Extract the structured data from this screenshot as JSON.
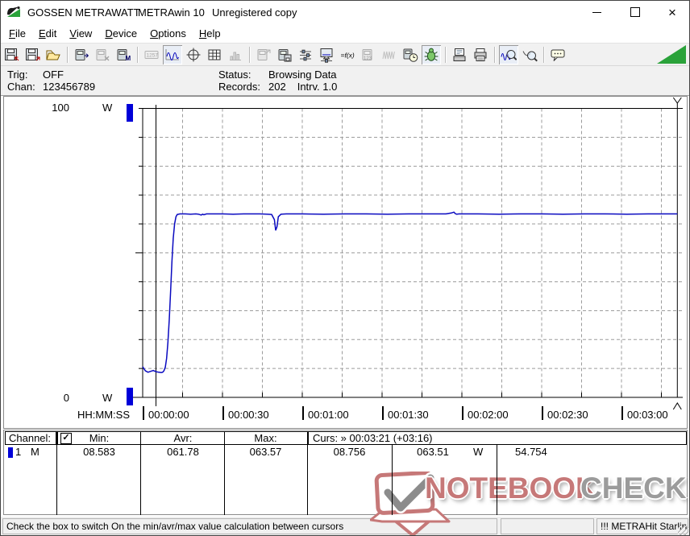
{
  "titlebar": {
    "brand": "GOSSEN METRAWATT",
    "app": "METRAwin 10",
    "note": "Unregistered copy"
  },
  "menubar": {
    "items": [
      "File",
      "Edit",
      "View",
      "Device",
      "Options",
      "Help"
    ]
  },
  "toolbar": {
    "corner_color": "#2aa23a",
    "buttons": [
      {
        "name": "save-data",
        "icon": "floppy-in",
        "state": "normal"
      },
      {
        "name": "save-data-as",
        "icon": "floppy-out",
        "state": "normal"
      },
      {
        "name": "open-file",
        "icon": "folder-open",
        "state": "normal"
      },
      {
        "name": "sep"
      },
      {
        "name": "read-from-device",
        "icon": "device-read",
        "state": "normal"
      },
      {
        "name": "send-to-device",
        "icon": "device-x",
        "state": "disabled"
      },
      {
        "name": "read-device-memory",
        "icon": "device-m",
        "state": "normal"
      },
      {
        "name": "sep"
      },
      {
        "name": "numeric-display-view",
        "icon": "lcd",
        "state": "disabled"
      },
      {
        "name": "chart-view",
        "icon": "waveform",
        "state": "pressed"
      },
      {
        "name": "cursor-tool",
        "icon": "crosshair",
        "state": "normal"
      },
      {
        "name": "table-view",
        "icon": "table",
        "state": "normal"
      },
      {
        "name": "histogram-view",
        "icon": "histogram",
        "state": "disabled"
      },
      {
        "name": "sep"
      },
      {
        "name": "export-data",
        "icon": "device-export",
        "state": "disabled"
      },
      {
        "name": "device-store",
        "icon": "device-save",
        "state": "normal"
      },
      {
        "name": "channel-settings",
        "icon": "sliders",
        "state": "normal"
      },
      {
        "name": "display-settings",
        "icon": "monitor",
        "state": "normal"
      },
      {
        "name": "formula",
        "icon": "fx",
        "state": "normal"
      },
      {
        "name": "device-values",
        "icon": "device-123",
        "state": "disabled"
      },
      {
        "name": "sample-rate",
        "icon": "wave-dense",
        "state": "disabled"
      },
      {
        "name": "timer",
        "icon": "clock-device",
        "state": "normal"
      },
      {
        "name": "debug",
        "icon": "bug",
        "state": "pressed"
      },
      {
        "name": "sep"
      },
      {
        "name": "print-preview",
        "icon": "print-preview",
        "state": "normal"
      },
      {
        "name": "print",
        "icon": "printer",
        "state": "normal"
      },
      {
        "name": "sep"
      },
      {
        "name": "zoom-signal",
        "icon": "zoom-wave",
        "state": "pressed"
      },
      {
        "name": "zoom-curve",
        "icon": "zoom-curve",
        "state": "normal"
      },
      {
        "name": "sep"
      },
      {
        "name": "annotations",
        "icon": "speech-bubble",
        "state": "normal"
      }
    ]
  },
  "statuspanel": {
    "trig_label": "Trig:",
    "trig_value": "OFF",
    "chan_label": "Chan:",
    "chan_value": "123456789",
    "status_label": "Status:",
    "status_value": "Browsing Data",
    "records_label": "Records:",
    "records_value": "202",
    "interval": "Intrv. 1.0"
  },
  "chart_data": {
    "type": "line",
    "title": "",
    "ylabel": "W",
    "y_top_label": "100",
    "y_bottom_label": "0",
    "y_unit": "W",
    "ylim": [
      0,
      100
    ],
    "y_grid_step_w": 10,
    "xlabel": "HH:MM:SS",
    "x_range_s": [
      0,
      203
    ],
    "x_tick_interval_s": 30,
    "x_grid_interval_s": 15,
    "x_tick_labels": [
      "00:00:00",
      "00:00:30",
      "00:01:00",
      "00:01:30",
      "00:02:00",
      "00:02:30",
      "00:03:00"
    ],
    "grid": true,
    "legend_position": "none",
    "cursors": [
      {
        "name": "cursor-1",
        "time_s": 5
      },
      {
        "name": "cursor-2",
        "time_s": 201
      }
    ],
    "series": [
      {
        "name": "1",
        "color": "#0a0ac0",
        "points": [
          [
            0,
            10.6
          ],
          [
            1,
            9.2
          ],
          [
            2,
            8.7
          ],
          [
            3,
            9.0
          ],
          [
            4,
            9.3
          ],
          [
            5,
            8.9
          ],
          [
            6,
            8.7
          ],
          [
            7,
            8.6
          ],
          [
            7.5,
            8.7
          ],
          [
            8,
            9.2
          ],
          [
            8.5,
            10.5
          ],
          [
            9,
            13.5
          ],
          [
            9.5,
            19
          ],
          [
            10,
            27
          ],
          [
            10.5,
            37
          ],
          [
            11,
            47
          ],
          [
            11.5,
            55
          ],
          [
            12,
            60
          ],
          [
            12.5,
            62.5
          ],
          [
            13,
            63.3
          ],
          [
            14,
            63.5
          ],
          [
            16,
            63.5
          ],
          [
            18,
            63.4
          ],
          [
            20,
            63.5
          ],
          [
            21,
            63.4
          ],
          [
            22,
            63.1
          ],
          [
            22.5,
            63.4
          ],
          [
            23,
            63.2
          ],
          [
            24,
            63.5
          ],
          [
            26,
            63.5
          ],
          [
            30,
            63.5
          ],
          [
            34,
            63.4
          ],
          [
            38,
            63.5
          ],
          [
            44,
            63.5
          ],
          [
            47,
            63.4
          ],
          [
            48.5,
            63.3
          ],
          [
            49.5,
            61.5
          ],
          [
            50,
            57.8
          ],
          [
            50.5,
            59
          ],
          [
            51,
            62.5
          ],
          [
            52,
            63.4
          ],
          [
            54,
            63.5
          ],
          [
            60,
            63.5
          ],
          [
            68,
            63.4
          ],
          [
            76,
            63.5
          ],
          [
            84,
            63.5
          ],
          [
            92,
            63.4
          ],
          [
            100,
            63.5
          ],
          [
            108,
            63.5
          ],
          [
            114,
            63.5
          ],
          [
            116,
            63.8
          ],
          [
            117,
            64.1
          ],
          [
            117.5,
            63.6
          ],
          [
            118,
            63.4
          ],
          [
            119,
            63.5
          ],
          [
            126,
            63.5
          ],
          [
            134,
            63.4
          ],
          [
            142,
            63.5
          ],
          [
            150,
            63.5
          ],
          [
            158,
            63.4
          ],
          [
            166,
            63.5
          ],
          [
            174,
            63.5
          ],
          [
            182,
            63.4
          ],
          [
            190,
            63.5
          ],
          [
            196,
            63.5
          ],
          [
            201,
            63.5
          ]
        ]
      }
    ]
  },
  "channel_table": {
    "header": {
      "channel": "Channel:",
      "checkbox_checked": true,
      "check_glyph": "✓",
      "min": "Min:",
      "avr": "Avr:",
      "max": "Max:",
      "curs": "Curs: » 00:03:21 (+03:16)"
    },
    "rows": [
      {
        "num": "1",
        "mode": "M",
        "color": "#0000d8",
        "min": "08.583",
        "avr": "061.78",
        "max": "063.57",
        "curs_a": "08.756",
        "curs_b": "063.51",
        "unit": "W",
        "extra": "54.754"
      }
    ]
  },
  "watermark": {
    "text_primary": "NOTEBOOK",
    "text_secondary": "CHECK",
    "primary_color": "#c67878",
    "secondary_color": "#9b9b9b"
  },
  "statusbar": {
    "message": "Check the box to switch On the min/avr/max value calculation between cursors",
    "middle": "",
    "device": "!!! METRAHit Starline-S"
  }
}
